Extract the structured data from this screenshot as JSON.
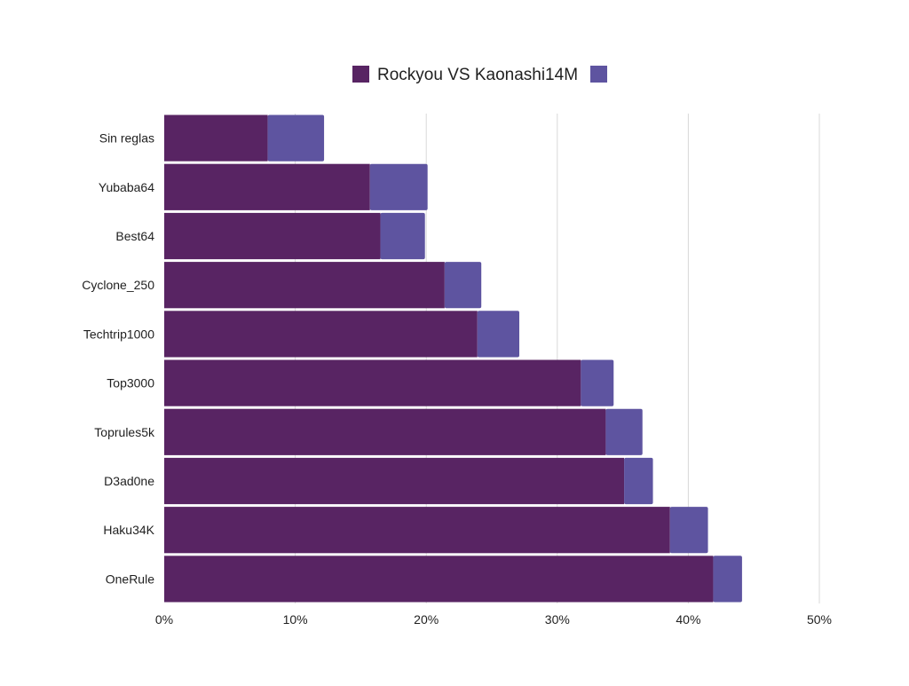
{
  "colors": {
    "series_1": "#582463",
    "series_2": "#5e54a0",
    "grid": "#d9d9d9",
    "text": "#1f1f1f"
  },
  "chart_data": {
    "type": "bar",
    "orientation": "horizontal",
    "stacked": true,
    "title": "",
    "xlabel": "",
    "ylabel": "",
    "categories": [
      "Sin reglas",
      "Yubaba64",
      "Best64",
      "Cyclone_250",
      "Techtrip1000",
      "Top3000",
      "Toprules5k",
      "D3ad0ne",
      "Haku34K",
      "OneRule"
    ],
    "series": [
      {
        "name": "Rockyou VS Kaonashi14M",
        "values": [
          7.9,
          15.7,
          16.5,
          21.4,
          23.9,
          31.8,
          33.7,
          35.1,
          38.6,
          41.9
        ]
      },
      {
        "values": [
          4.3,
          4.4,
          3.4,
          2.8,
          3.2,
          2.5,
          2.8,
          2.2,
          2.9,
          2.2
        ]
      }
    ],
    "xlim": [
      0,
      50
    ],
    "x_ticks": [
      "0%",
      "10%",
      "20%",
      "30%",
      "40%",
      "50%"
    ],
    "grid": true,
    "legend": {
      "position": "top-center"
    }
  }
}
